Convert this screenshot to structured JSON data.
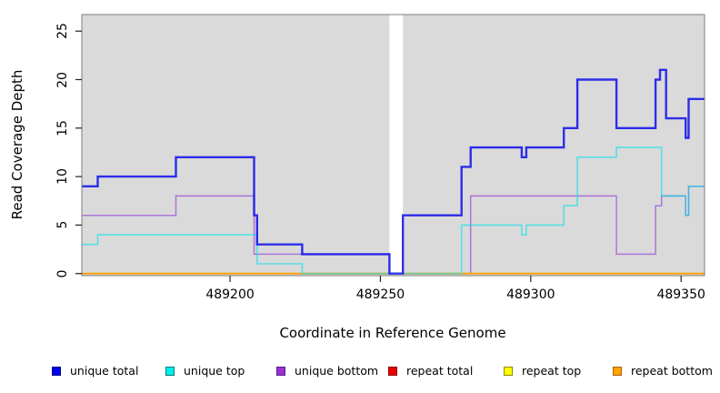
{
  "chart_data": {
    "type": "line",
    "subtype": "step",
    "title": "",
    "xlabel": "Coordinate in Reference Genome",
    "ylabel": "Read Coverage Depth",
    "x_domain": [
      489150.7,
      489357.8
    ],
    "y_domain": [
      0,
      26.7
    ],
    "x_ticks": [
      489200,
      489250,
      489300,
      489350
    ],
    "y_ticks": [
      0,
      5,
      10,
      15,
      20,
      25
    ],
    "grid": false,
    "plot_bg": "#DADADA",
    "gap_region": {
      "from": 489253,
      "to": 489257.5
    },
    "series": [
      {
        "name": "unique bottom",
        "color": "rgba(145,55,215,0.62)",
        "width": 1.5,
        "points": [
          [
            489150.7,
            6
          ],
          [
            489182,
            8
          ],
          [
            489208,
            2
          ],
          [
            489253,
            0
          ],
          [
            489280,
            8
          ],
          [
            489328.5,
            2
          ],
          [
            489341.5,
            7
          ],
          [
            489343.5,
            8
          ],
          [
            489351.5,
            6
          ],
          [
            489352.5,
            9
          ]
        ]
      },
      {
        "name": "repeat total",
        "color": "#DD0000",
        "width": 1.5,
        "points": [
          [
            489150.7,
            0
          ]
        ]
      },
      {
        "name": "repeat top",
        "color": "#F0F000",
        "width": 1.5,
        "points": [
          [
            489150.7,
            0
          ]
        ]
      },
      {
        "name": "repeat bottom",
        "color": "#FF9F00",
        "width": 1.8,
        "points": [
          [
            489150.7,
            0
          ]
        ]
      },
      {
        "name": "unique top",
        "color": "rgba(0,225,235,0.6)",
        "width": 1.6,
        "points": [
          [
            489150.7,
            3
          ],
          [
            489156,
            4
          ],
          [
            489209,
            1
          ],
          [
            489224,
            0
          ],
          [
            489277,
            5
          ],
          [
            489297,
            4
          ],
          [
            489298.5,
            5
          ],
          [
            489311,
            7
          ],
          [
            489315.5,
            12
          ],
          [
            489328.5,
            13
          ],
          [
            489343.5,
            8
          ],
          [
            489351.5,
            6
          ],
          [
            489352.5,
            9
          ]
        ]
      },
      {
        "name": "unique total",
        "color": "rgba(20,20,235,0.88)",
        "width": 2.4,
        "points": [
          [
            489150.7,
            9
          ],
          [
            489156,
            10
          ],
          [
            489182,
            12
          ],
          [
            489208,
            6
          ],
          [
            489209,
            3
          ],
          [
            489224,
            2
          ],
          [
            489253,
            0
          ],
          [
            489257.5,
            6
          ],
          [
            489277,
            11
          ],
          [
            489280,
            13
          ],
          [
            489297,
            12
          ],
          [
            489298.5,
            13
          ],
          [
            489311,
            15
          ],
          [
            489315.5,
            20
          ],
          [
            489328.5,
            15
          ],
          [
            489341.5,
            20
          ],
          [
            489343,
            21
          ],
          [
            489345,
            16
          ],
          [
            489351.5,
            14
          ],
          [
            489352.5,
            18
          ]
        ]
      }
    ]
  },
  "legend": {
    "items": [
      {
        "label": "unique total",
        "color": "#0000EE",
        "border": "#00008B"
      },
      {
        "label": "unique top",
        "color": "#00EEEE",
        "border": "#007A7A"
      },
      {
        "label": "unique bottom",
        "color": "#9932CC",
        "border": "#5E1C8E"
      },
      {
        "label": "repeat total",
        "color": "#EE0000",
        "border": "#8B0000"
      },
      {
        "label": "repeat top",
        "color": "#FFFF00",
        "border": "#8B8B00"
      },
      {
        "label": "repeat bottom",
        "color": "#FFA500",
        "border": "#A66400"
      }
    ]
  }
}
